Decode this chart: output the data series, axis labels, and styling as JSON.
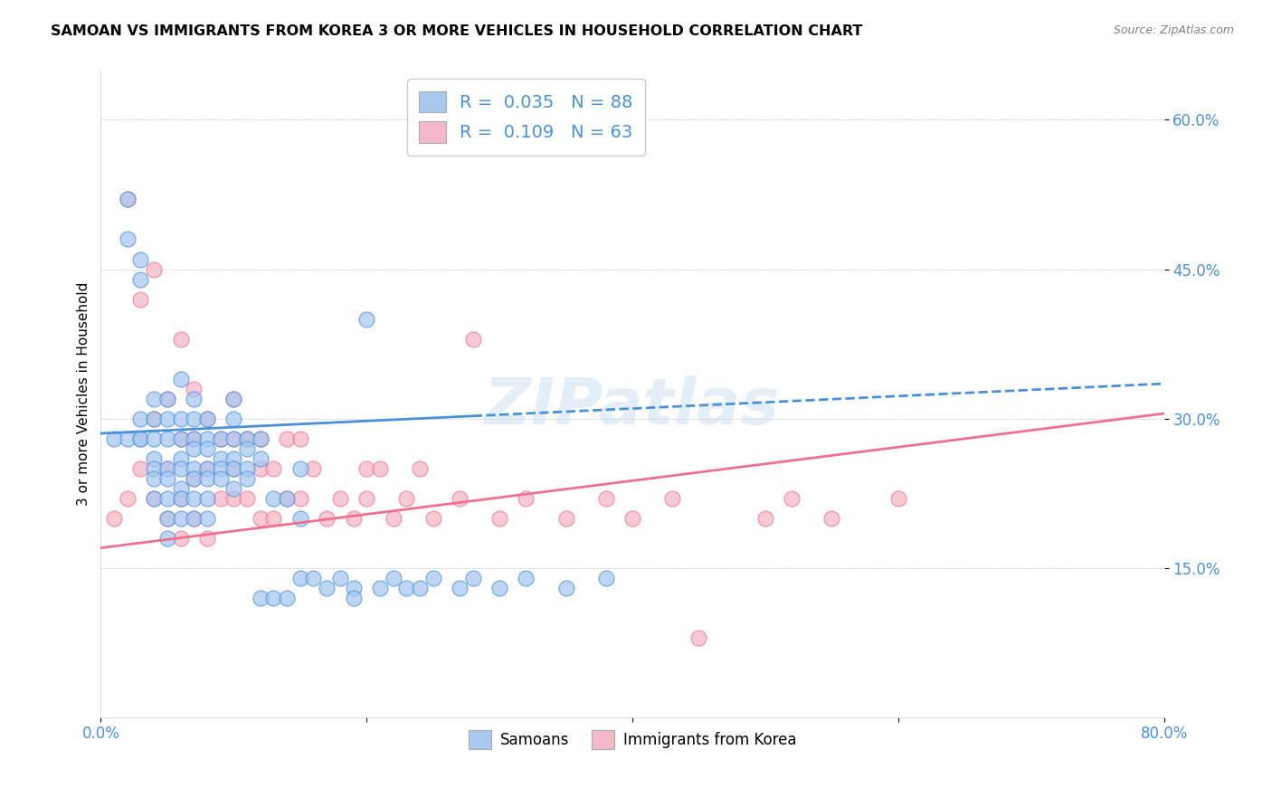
{
  "title": "SAMOAN VS IMMIGRANTS FROM KOREA 3 OR MORE VEHICLES IN HOUSEHOLD CORRELATION CHART",
  "source": "Source: ZipAtlas.com",
  "ylabel": "3 or more Vehicles in Household",
  "x_min": 0.0,
  "x_max": 0.8,
  "y_min": 0.0,
  "y_max": 0.65,
  "x_ticks": [
    0.0,
    0.2,
    0.4,
    0.6,
    0.8
  ],
  "x_tick_labels": [
    "0.0%",
    "",
    "",
    "",
    "80.0%"
  ],
  "y_ticks": [
    0.15,
    0.3,
    0.45,
    0.6
  ],
  "y_tick_labels": [
    "15.0%",
    "30.0%",
    "45.0%",
    "60.0%"
  ],
  "samoans_color": "#a8c8f0",
  "korea_color": "#f5b8c8",
  "samoans_line_color": "#4a90d9",
  "korea_line_color": "#f07090",
  "samoans_R": 0.035,
  "samoans_N": 88,
  "korea_R": 0.109,
  "korea_N": 63,
  "legend_label_1": "Samoans",
  "legend_label_2": "Immigrants from Korea",
  "watermark": "ZIPatlas",
  "samoans_line_start_x": 0.0,
  "samoans_line_start_y": 0.285,
  "samoans_line_end_x": 0.8,
  "samoans_line_end_y": 0.335,
  "korea_line_start_x": 0.0,
  "korea_line_start_y": 0.17,
  "korea_line_end_x": 0.8,
  "korea_line_end_y": 0.305,
  "samoans_x": [
    0.01,
    0.02,
    0.02,
    0.02,
    0.03,
    0.03,
    0.03,
    0.03,
    0.03,
    0.04,
    0.04,
    0.04,
    0.04,
    0.04,
    0.04,
    0.04,
    0.05,
    0.05,
    0.05,
    0.05,
    0.05,
    0.05,
    0.05,
    0.05,
    0.06,
    0.06,
    0.06,
    0.06,
    0.06,
    0.06,
    0.06,
    0.06,
    0.07,
    0.07,
    0.07,
    0.07,
    0.07,
    0.07,
    0.07,
    0.07,
    0.08,
    0.08,
    0.08,
    0.08,
    0.08,
    0.08,
    0.08,
    0.09,
    0.09,
    0.09,
    0.09,
    0.1,
    0.1,
    0.1,
    0.1,
    0.1,
    0.1,
    0.11,
    0.11,
    0.11,
    0.11,
    0.12,
    0.12,
    0.12,
    0.13,
    0.13,
    0.14,
    0.14,
    0.15,
    0.15,
    0.15,
    0.16,
    0.17,
    0.18,
    0.19,
    0.19,
    0.2,
    0.21,
    0.22,
    0.23,
    0.24,
    0.25,
    0.27,
    0.28,
    0.3,
    0.32,
    0.35,
    0.38
  ],
  "samoans_y": [
    0.28,
    0.48,
    0.52,
    0.28,
    0.44,
    0.46,
    0.28,
    0.3,
    0.28,
    0.26,
    0.28,
    0.3,
    0.32,
    0.25,
    0.24,
    0.22,
    0.32,
    0.28,
    0.3,
    0.25,
    0.24,
    0.22,
    0.2,
    0.18,
    0.34,
    0.3,
    0.28,
    0.26,
    0.25,
    0.23,
    0.22,
    0.2,
    0.32,
    0.3,
    0.28,
    0.27,
    0.25,
    0.24,
    0.22,
    0.2,
    0.3,
    0.28,
    0.27,
    0.25,
    0.24,
    0.22,
    0.2,
    0.28,
    0.26,
    0.25,
    0.24,
    0.32,
    0.3,
    0.28,
    0.26,
    0.25,
    0.23,
    0.28,
    0.27,
    0.25,
    0.24,
    0.28,
    0.26,
    0.12,
    0.22,
    0.12,
    0.22,
    0.12,
    0.25,
    0.2,
    0.14,
    0.14,
    0.13,
    0.14,
    0.13,
    0.12,
    0.4,
    0.13,
    0.14,
    0.13,
    0.13,
    0.14,
    0.13,
    0.14,
    0.13,
    0.14,
    0.13,
    0.14
  ],
  "korea_x": [
    0.01,
    0.02,
    0.02,
    0.03,
    0.03,
    0.04,
    0.04,
    0.04,
    0.05,
    0.05,
    0.05,
    0.06,
    0.06,
    0.06,
    0.06,
    0.07,
    0.07,
    0.07,
    0.07,
    0.08,
    0.08,
    0.08,
    0.09,
    0.09,
    0.1,
    0.1,
    0.1,
    0.1,
    0.11,
    0.11,
    0.12,
    0.12,
    0.12,
    0.13,
    0.13,
    0.14,
    0.14,
    0.15,
    0.15,
    0.16,
    0.17,
    0.18,
    0.19,
    0.2,
    0.2,
    0.21,
    0.22,
    0.23,
    0.24,
    0.25,
    0.27,
    0.28,
    0.3,
    0.32,
    0.35,
    0.38,
    0.4,
    0.43,
    0.45,
    0.5,
    0.52,
    0.55,
    0.6
  ],
  "korea_y": [
    0.2,
    0.52,
    0.22,
    0.42,
    0.25,
    0.45,
    0.22,
    0.3,
    0.32,
    0.25,
    0.2,
    0.38,
    0.28,
    0.22,
    0.18,
    0.33,
    0.28,
    0.24,
    0.2,
    0.3,
    0.25,
    0.18,
    0.28,
    0.22,
    0.32,
    0.28,
    0.25,
    0.22,
    0.28,
    0.22,
    0.28,
    0.25,
    0.2,
    0.25,
    0.2,
    0.28,
    0.22,
    0.28,
    0.22,
    0.25,
    0.2,
    0.22,
    0.2,
    0.25,
    0.22,
    0.25,
    0.2,
    0.22,
    0.25,
    0.2,
    0.22,
    0.38,
    0.2,
    0.22,
    0.2,
    0.22,
    0.2,
    0.22,
    0.08,
    0.2,
    0.22,
    0.2,
    0.22
  ]
}
